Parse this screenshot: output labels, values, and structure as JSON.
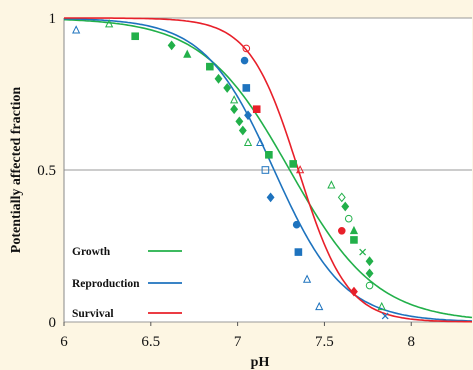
{
  "chart_data": {
    "type": "scatter",
    "title": "",
    "xlabel": "pH",
    "ylabel": "Potentially affected fraction",
    "xlim": [
      6,
      8.35
    ],
    "ylim": [
      0,
      1
    ],
    "x_ticks": [
      "6",
      "6.5",
      "7",
      "7.5",
      "8"
    ],
    "y_ticks": [
      "0",
      "0.5",
      "1"
    ],
    "grid": "horizontal",
    "legend_placement": "bottom-left",
    "series": [
      {
        "name": "Growth",
        "color": "#22b04a",
        "curve": {
          "type": "logistic",
          "midpoint": 7.3,
          "slope": 0.25
        },
        "points": [
          {
            "x": 6.26,
            "y": 0.98,
            "marker": "triangle-open"
          },
          {
            "x": 6.41,
            "y": 0.94,
            "marker": "square"
          },
          {
            "x": 6.62,
            "y": 0.91,
            "marker": "diamond"
          },
          {
            "x": 6.71,
            "y": 0.88,
            "marker": "triangle"
          },
          {
            "x": 6.84,
            "y": 0.84,
            "marker": "square"
          },
          {
            "x": 6.89,
            "y": 0.8,
            "marker": "diamond"
          },
          {
            "x": 6.94,
            "y": 0.77,
            "marker": "diamond"
          },
          {
            "x": 6.98,
            "y": 0.73,
            "marker": "triangle-open"
          },
          {
            "x": 6.98,
            "y": 0.7,
            "marker": "diamond"
          },
          {
            "x": 7.01,
            "y": 0.66,
            "marker": "diamond"
          },
          {
            "x": 7.03,
            "y": 0.63,
            "marker": "diamond"
          },
          {
            "x": 7.06,
            "y": 0.59,
            "marker": "triangle-open"
          },
          {
            "x": 7.18,
            "y": 0.55,
            "marker": "square"
          },
          {
            "x": 7.32,
            "y": 0.52,
            "marker": "square"
          },
          {
            "x": 7.54,
            "y": 0.45,
            "marker": "triangle-open"
          },
          {
            "x": 7.6,
            "y": 0.41,
            "marker": "diamond-open"
          },
          {
            "x": 7.62,
            "y": 0.38,
            "marker": "diamond"
          },
          {
            "x": 7.64,
            "y": 0.34,
            "marker": "circle-open"
          },
          {
            "x": 7.67,
            "y": 0.3,
            "marker": "triangle"
          },
          {
            "x": 7.67,
            "y": 0.27,
            "marker": "square"
          },
          {
            "x": 7.72,
            "y": 0.23,
            "marker": "cross"
          },
          {
            "x": 7.76,
            "y": 0.2,
            "marker": "diamond"
          },
          {
            "x": 7.76,
            "y": 0.16,
            "marker": "diamond"
          },
          {
            "x": 7.76,
            "y": 0.12,
            "marker": "circle-open"
          },
          {
            "x": 7.83,
            "y": 0.05,
            "marker": "triangle-open"
          }
        ]
      },
      {
        "name": "Reproduction",
        "color": "#1e73be",
        "curve": {
          "type": "logistic",
          "midpoint": 7.21,
          "slope": 0.2
        },
        "points": [
          {
            "x": 6.07,
            "y": 0.96,
            "marker": "triangle-open"
          },
          {
            "x": 7.04,
            "y": 0.86,
            "marker": "circle"
          },
          {
            "x": 7.05,
            "y": 0.77,
            "marker": "square"
          },
          {
            "x": 7.06,
            "y": 0.68,
            "marker": "diamond"
          },
          {
            "x": 7.13,
            "y": 0.59,
            "marker": "triangle-open"
          },
          {
            "x": 7.16,
            "y": 0.5,
            "marker": "square-open"
          },
          {
            "x": 7.19,
            "y": 0.41,
            "marker": "diamond"
          },
          {
            "x": 7.34,
            "y": 0.32,
            "marker": "circle"
          },
          {
            "x": 7.35,
            "y": 0.23,
            "marker": "square"
          },
          {
            "x": 7.4,
            "y": 0.14,
            "marker": "triangle-open"
          },
          {
            "x": 7.47,
            "y": 0.05,
            "marker": "triangle-open"
          },
          {
            "x": 7.85,
            "y": 0.02,
            "marker": "cross"
          }
        ]
      },
      {
        "name": "Survival",
        "color": "#e8202a",
        "curve": {
          "type": "logistic",
          "midpoint": 7.35,
          "slope": 0.14
        },
        "points": [
          {
            "x": 7.05,
            "y": 0.9,
            "marker": "circle-open"
          },
          {
            "x": 7.11,
            "y": 0.7,
            "marker": "square"
          },
          {
            "x": 7.36,
            "y": 0.5,
            "marker": "triangle-open"
          },
          {
            "x": 7.6,
            "y": 0.3,
            "marker": "circle"
          },
          {
            "x": 7.67,
            "y": 0.1,
            "marker": "diamond"
          }
        ]
      }
    ]
  }
}
